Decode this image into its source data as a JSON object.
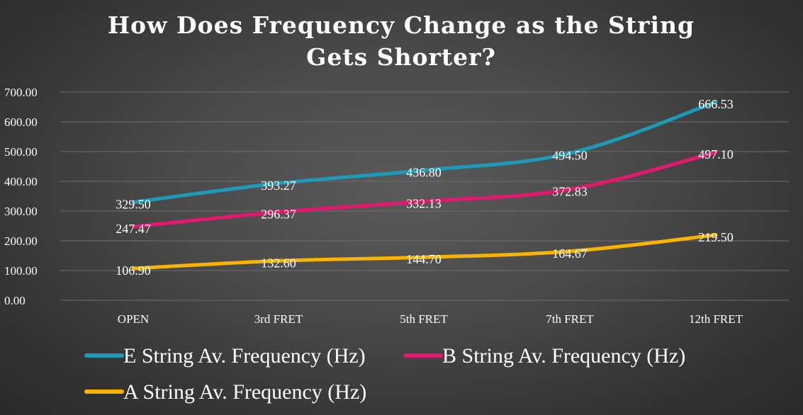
{
  "chart_data": {
    "type": "line",
    "title_lines": [
      "How Does Frequency Change as the String",
      "Gets Shorter?"
    ],
    "categories": [
      "OPEN",
      "3rd FRET",
      "5th FRET",
      "7th FRET",
      "12th FRET"
    ],
    "series": [
      {
        "name": "E String Av. Frequency (Hz)",
        "color": "#1c9bb8",
        "values": [
          329.5,
          393.27,
          436.8,
          494.5,
          666.53
        ],
        "labels": [
          "329.50",
          "393.27",
          "436.80",
          "494.50",
          "666.53"
        ]
      },
      {
        "name": "B String Av. Frequency (Hz)",
        "color": "#e5176e",
        "values": [
          247.47,
          296.37,
          332.13,
          372.83,
          497.1
        ],
        "labels": [
          "247.47",
          "296.37",
          "332.13",
          "372.83",
          "497.10"
        ]
      },
      {
        "name": "A String Av. Frequency (Hz)",
        "color": "#f8b400",
        "values": [
          106.9,
          132.6,
          144.7,
          164.67,
          219.5
        ],
        "labels": [
          "106.90",
          "132.60",
          "144.70",
          "164.67",
          "219.50"
        ]
      }
    ],
    "y_ticks": [
      "0.00",
      "100.00",
      "200.00",
      "300.00",
      "400.00",
      "500.00",
      "600.00",
      "700.00"
    ],
    "ylim": [
      0,
      700
    ],
    "grid": true,
    "legend_position": "bottom"
  }
}
